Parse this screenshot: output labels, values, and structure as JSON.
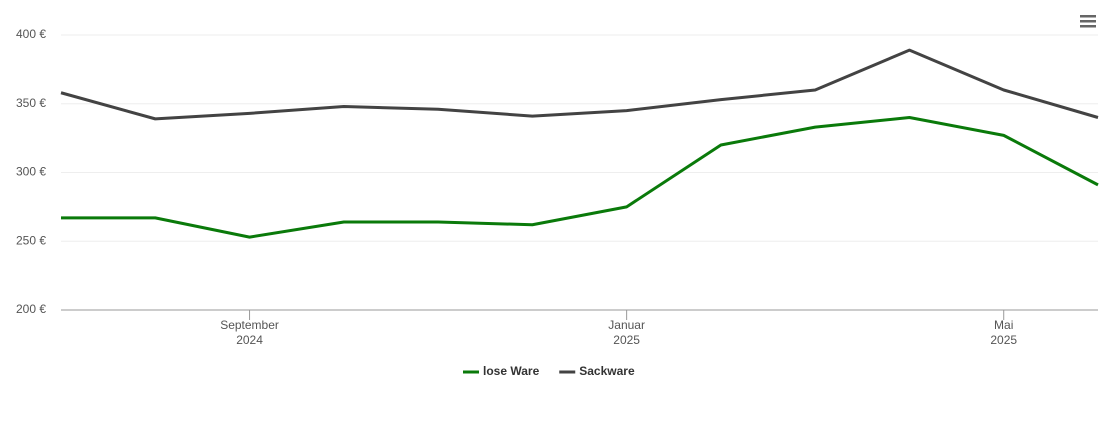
{
  "chart_data": {
    "type": "line",
    "x": [
      "2024-07",
      "2024-08",
      "2024-09",
      "2024-10",
      "2024-11",
      "2024-12",
      "2025-01",
      "2025-02",
      "2025-03",
      "2025-04",
      "2025-05",
      "2025-06"
    ],
    "xlim": [
      "2024-07",
      "2025-06"
    ],
    "xticks": [
      {
        "value": "2024-09",
        "label": [
          "September",
          "2024"
        ]
      },
      {
        "value": "2025-01",
        "label": [
          "Januar",
          "2025"
        ]
      },
      {
        "value": "2025-05",
        "label": [
          "Mai",
          "2025"
        ]
      }
    ],
    "ylim": [
      200,
      400
    ],
    "yticks": [
      {
        "value": 200,
        "label": "200 €"
      },
      {
        "value": 250,
        "label": "250 €"
      },
      {
        "value": 300,
        "label": "300 €"
      },
      {
        "value": 350,
        "label": "350 €"
      },
      {
        "value": 400,
        "label": "400 €"
      }
    ],
    "grid": true,
    "legend": "bottom",
    "series": [
      {
        "name": "lose Ware",
        "color": "#0a7a0a",
        "values": [
          267,
          267,
          253,
          264,
          264,
          262,
          275,
          320,
          333,
          340,
          327,
          291
        ]
      },
      {
        "name": "Sackware",
        "color": "#434343",
        "values": [
          358,
          339,
          343,
          348,
          346,
          341,
          345,
          353,
          360,
          389,
          360,
          340
        ]
      }
    ]
  }
}
